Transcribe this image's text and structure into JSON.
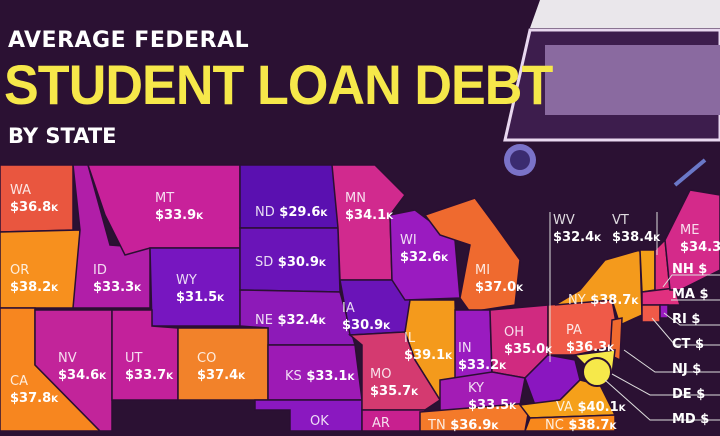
{
  "title": {
    "line1": "AVERAGE FEDERAL",
    "line2": "STUDENT LOAN DEBT",
    "line3": "BY STATE"
  },
  "colors": {
    "background": "#2b1133",
    "title_accent": "#f6e84a",
    "low": "#5b10b0",
    "mid": "#c4209b",
    "high": "#f5a01a"
  },
  "states": [
    {
      "code": "WA",
      "value": "$36.8",
      "unit": "K"
    },
    {
      "code": "OR",
      "value": "$38.2",
      "unit": "K"
    },
    {
      "code": "CA",
      "value": "$37.8",
      "unit": "K"
    },
    {
      "code": "MT",
      "value": "$33.9",
      "unit": "K"
    },
    {
      "code": "ID",
      "value": "$33.3",
      "unit": "K"
    },
    {
      "code": "WY",
      "value": "$31.5",
      "unit": "K"
    },
    {
      "code": "NV",
      "value": "$34.6",
      "unit": "K"
    },
    {
      "code": "UT",
      "value": "$33.7",
      "unit": "K"
    },
    {
      "code": "CO",
      "value": "$37.4",
      "unit": "K"
    },
    {
      "code": "ND",
      "value": "$29.6",
      "unit": "K"
    },
    {
      "code": "SD",
      "value": "$30.9",
      "unit": "K"
    },
    {
      "code": "NE",
      "value": "$32.4",
      "unit": "K"
    },
    {
      "code": "KS",
      "value": "$33.1",
      "unit": "K"
    },
    {
      "code": "MN",
      "value": "$34.1",
      "unit": "K"
    },
    {
      "code": "IA",
      "value": "$30.9",
      "unit": "K"
    },
    {
      "code": "WI",
      "value": "$32.6",
      "unit": "K"
    },
    {
      "code": "MI",
      "value": "$37.0",
      "unit": "K"
    },
    {
      "code": "IL",
      "value": "$39.1",
      "unit": "K"
    },
    {
      "code": "IN",
      "value": "$33.2",
      "unit": "K"
    },
    {
      "code": "OH",
      "value": "$35.0",
      "unit": "K"
    },
    {
      "code": "MO",
      "value": "$35.7",
      "unit": "K"
    },
    {
      "code": "KY",
      "value": "$33.5",
      "unit": "K"
    },
    {
      "code": "WV",
      "value": "$32.4",
      "unit": "K"
    },
    {
      "code": "VT",
      "value": "$38.4",
      "unit": "K"
    },
    {
      "code": "ME",
      "value": "$34.3",
      "unit": ""
    },
    {
      "code": "NY",
      "value": "$38.7",
      "unit": "K"
    },
    {
      "code": "PA",
      "value": "$36.3",
      "unit": "K"
    },
    {
      "code": "VA",
      "value": "$40.1",
      "unit": "K"
    },
    {
      "code": "TN",
      "value": "$36.9",
      "unit": "K"
    },
    {
      "code": "NC",
      "value": "$38.7",
      "unit": "K"
    },
    {
      "code": "OK",
      "value": "",
      "unit": ""
    },
    {
      "code": "AR",
      "value": "",
      "unit": ""
    }
  ],
  "side_list": [
    {
      "code": "NH",
      "value": "$"
    },
    {
      "code": "MA",
      "value": "$"
    },
    {
      "code": "RI",
      "value": "$"
    },
    {
      "code": "CT",
      "value": "$"
    },
    {
      "code": "NJ",
      "value": "$"
    },
    {
      "code": "DE",
      "value": "$"
    },
    {
      "code": "MD",
      "value": "$"
    }
  ]
}
